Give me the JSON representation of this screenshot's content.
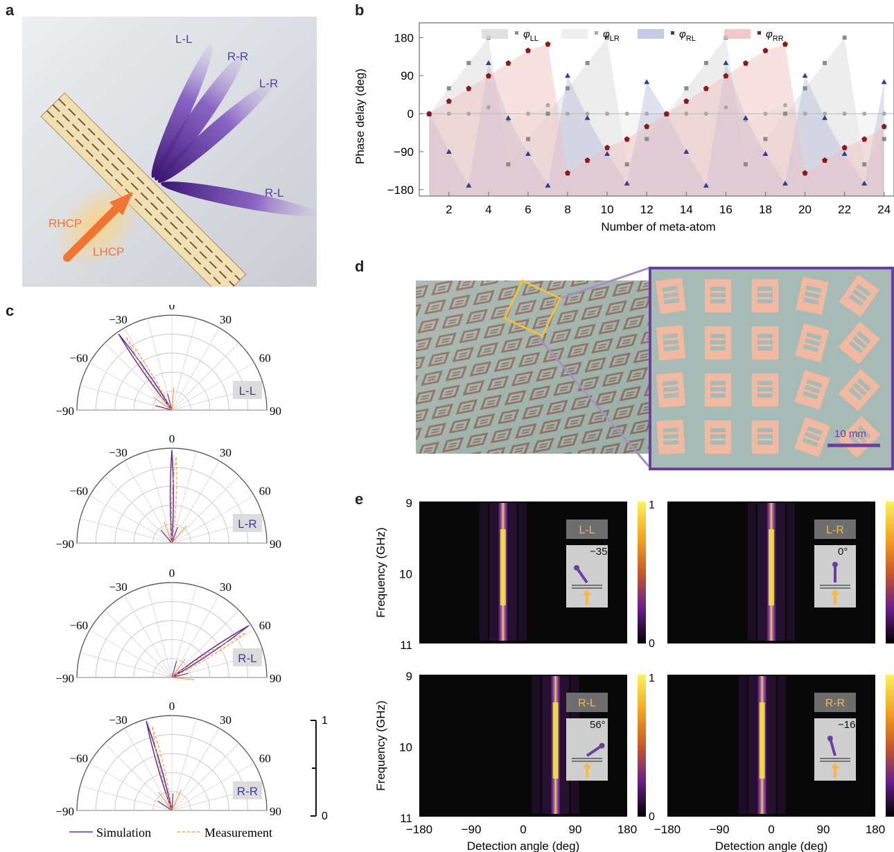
{
  "panels": {
    "a": "a",
    "b": "b",
    "c": "c",
    "d": "d",
    "e": "e"
  },
  "panel_a": {
    "beam_labels": [
      "L-L",
      "R-R",
      "L-R",
      "R-L"
    ],
    "incident_labels": [
      "RHCP",
      "LHCP"
    ],
    "beam_color": "#5a2d91",
    "incident_color": "#f07a3c"
  },
  "chart_data": [
    {
      "type": "line",
      "panel": "b",
      "xlabel": "Number of meta-atom",
      "ylabel": "Phase delay (deg)",
      "xlim": [
        0.5,
        24.5
      ],
      "ylim": [
        -195,
        215
      ],
      "x_ticks": [
        2,
        4,
        6,
        8,
        10,
        12,
        14,
        16,
        18,
        20,
        22,
        24
      ],
      "y_ticks": [
        180,
        90,
        0,
        -90,
        -180
      ],
      "y_tick_labels": [
        "180",
        "90",
        "0",
        "−90",
        "−180"
      ],
      "legend": [
        {
          "base": "φ",
          "sub": "LL",
          "color": "#8c8c8c",
          "fill": "#d8d8d8"
        },
        {
          "base": "φ",
          "sub": "LR",
          "color": "#a8a8a8",
          "fill": "#ebebeb"
        },
        {
          "base": "φ",
          "sub": "RL",
          "color": "#2a3f8f",
          "fill": "#b9bde0"
        },
        {
          "base": "φ",
          "sub": "RR",
          "color": "#8b1a1a",
          "fill": "#efbcbc"
        }
      ],
      "x": [
        1,
        2,
        3,
        4,
        5,
        6,
        7,
        8,
        9,
        10,
        11,
        12,
        13,
        14,
        15,
        16,
        17,
        18,
        19,
        20,
        21,
        22,
        23,
        24
      ],
      "series": [
        {
          "name": "LL",
          "marker": "square",
          "values": [
            0,
            60,
            120,
            180,
            -120,
            -60,
            0,
            60,
            120,
            180,
            -120,
            -60,
            0,
            60,
            120,
            180,
            -120,
            -60,
            0,
            60,
            120,
            180,
            -120,
            -60
          ]
        },
        {
          "name": "LR",
          "marker": "circle",
          "values": [
            0,
            0,
            0,
            15,
            -15,
            0,
            20,
            0,
            0,
            0,
            0,
            0,
            0,
            0,
            0,
            15,
            -15,
            0,
            20,
            0,
            0,
            0,
            0,
            0
          ]
        },
        {
          "name": "RL",
          "marker": "triangle",
          "values": [
            0,
            -90,
            -170,
            120,
            -10,
            -95,
            -170,
            90,
            -10,
            -95,
            -165,
            75,
            0,
            -90,
            -170,
            120,
            -10,
            -95,
            -165,
            90,
            -10,
            -95,
            -165,
            75
          ]
        },
        {
          "name": "RR",
          "marker": "pentagon",
          "values": [
            0,
            30,
            60,
            90,
            120,
            150,
            165,
            -140,
            -110,
            -80,
            -60,
            -30,
            0,
            30,
            60,
            90,
            120,
            150,
            165,
            -140,
            -110,
            -80,
            -60,
            -30
          ]
        }
      ]
    },
    {
      "type": "line",
      "panel": "c",
      "subtype": "polar",
      "angle_ticks": [
        "−90",
        "−60",
        "−30",
        "0",
        "30",
        "60",
        "90"
      ],
      "legend": [
        {
          "name": "Simulation",
          "color": "#6a2c8f",
          "style": "solid"
        },
        {
          "name": "Measurement",
          "color": "#f0a050",
          "style": "dashed"
        }
      ],
      "colorbar": {
        "min": "0",
        "max": "1"
      },
      "plots": [
        {
          "label": "L-L",
          "peak_angle": -35
        },
        {
          "label": "L-R",
          "peak_angle": 0
        },
        {
          "label": "R-L",
          "peak_angle": 56
        },
        {
          "label": "R-R",
          "peak_angle": -16
        }
      ]
    },
    {
      "type": "heatmap",
      "panel": "e",
      "xlabel": "Detection angle (deg)",
      "ylabel": "Frequency (GHz)",
      "x_ticks": [
        "−180",
        "−90",
        "0",
        "90",
        "180"
      ],
      "y_ticks": [
        "9",
        "10",
        "11"
      ],
      "colorbar": {
        "min": "0",
        "max": "1"
      },
      "maps": [
        {
          "label": "L-L",
          "angle": "−35°",
          "peak_angle": -35
        },
        {
          "label": "L-R",
          "angle": "0°",
          "peak_angle": 0
        },
        {
          "label": "R-L",
          "angle": "56°",
          "peak_angle": 56
        },
        {
          "label": "R-R",
          "angle": "−16°",
          "peak_angle": -16
        }
      ]
    }
  ],
  "panel_d": {
    "scale_bar": "10 mm",
    "frame_color": "#6a3fa0",
    "zoom_color": "#f0c040"
  }
}
